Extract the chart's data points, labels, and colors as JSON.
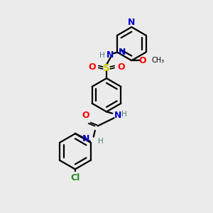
{
  "bg_color": "#ebebeb",
  "colors": {
    "N": "#0000cd",
    "O": "#ff0000",
    "S": "#cccc00",
    "Cl": "#228b22",
    "C": "#000000",
    "H": "#4a7f7f"
  },
  "lw": 1.6,
  "fs": 9,
  "fs_small": 7.5
}
